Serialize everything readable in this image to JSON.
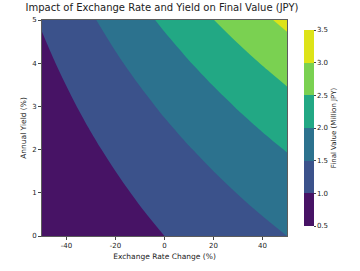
{
  "chart_data": {
    "type": "contour",
    "title": "Impact of Exchange Rate and Yield on Final Value (JPY)",
    "x_label": "Exchange Rate Change (%)",
    "y_label": "Annual Yield (%)",
    "x": [
      -50,
      -40,
      -30,
      -20,
      -10,
      0,
      10,
      20,
      30,
      40,
      50
    ],
    "y": [
      0,
      0.5,
      1,
      1.5,
      2,
      2.5,
      3,
      3.5,
      4,
      4.5,
      5
    ],
    "z": [
      [
        0.5,
        0.6,
        0.7,
        0.8,
        0.9,
        1.0,
        1.1,
        1.2,
        1.3,
        1.4,
        1.5
      ],
      [
        0.539,
        0.647,
        0.754,
        0.862,
        0.97,
        1.078,
        1.185,
        1.293,
        1.401,
        1.509,
        1.617
      ],
      [
        0.581,
        0.697,
        0.813,
        0.929,
        1.045,
        1.161,
        1.277,
        1.393,
        1.509,
        1.625,
        1.742
      ],
      [
        0.625,
        0.75,
        0.875,
        1.0,
        1.125,
        1.25,
        1.375,
        1.5,
        1.625,
        1.75,
        1.875
      ],
      [
        0.673,
        0.808,
        0.942,
        1.077,
        1.211,
        1.346,
        1.48,
        1.615,
        1.75,
        1.884,
        2.019
      ],
      [
        0.724,
        0.869,
        1.014,
        1.159,
        1.303,
        1.448,
        1.593,
        1.738,
        1.883,
        2.028,
        2.172
      ],
      [
        0.779,
        0.935,
        1.091,
        1.246,
        1.402,
        1.558,
        1.714,
        1.87,
        2.025,
        2.181,
        2.337
      ],
      [
        0.838,
        1.005,
        1.173,
        1.34,
        1.508,
        1.675,
        1.843,
        2.01,
        2.178,
        2.345,
        2.513
      ],
      [
        0.9,
        1.081,
        1.261,
        1.441,
        1.621,
        1.801,
        1.981,
        2.161,
        2.341,
        2.521,
        2.701
      ],
      [
        0.968,
        1.161,
        1.355,
        1.548,
        1.742,
        1.935,
        2.129,
        2.322,
        2.516,
        2.71,
        2.903
      ],
      [
        1.039,
        1.247,
        1.455,
        1.663,
        1.871,
        2.079,
        2.287,
        2.495,
        2.703,
        2.91,
        3.118
      ]
    ],
    "xlim": [
      -50,
      50
    ],
    "xticks": [
      -40,
      -20,
      0,
      20,
      40
    ],
    "ylim": [
      0,
      5
    ],
    "yticks": [
      0,
      1,
      2,
      3,
      4,
      5
    ],
    "colorbar_label": "Final Value (Million JPY)",
    "colorbar_range": [
      0.5,
      3.5
    ],
    "colorbar_ticks": [
      {
        "value": 0.5,
        "label": "0.5"
      },
      {
        "value": 1,
        "label": "1.0"
      },
      {
        "value": 1.5,
        "label": "1.5"
      },
      {
        "value": 2,
        "label": "2.0"
      },
      {
        "value": 2.5,
        "label": "2.5"
      },
      {
        "value": 3,
        "label": "3.0"
      },
      {
        "value": 3.5,
        "label": "3.5"
      }
    ],
    "colors": [
      "#471365",
      "#3b528b",
      "#2c728e",
      "#22a884",
      "#7ad151",
      "#dde318"
    ],
    "grid": false
  }
}
